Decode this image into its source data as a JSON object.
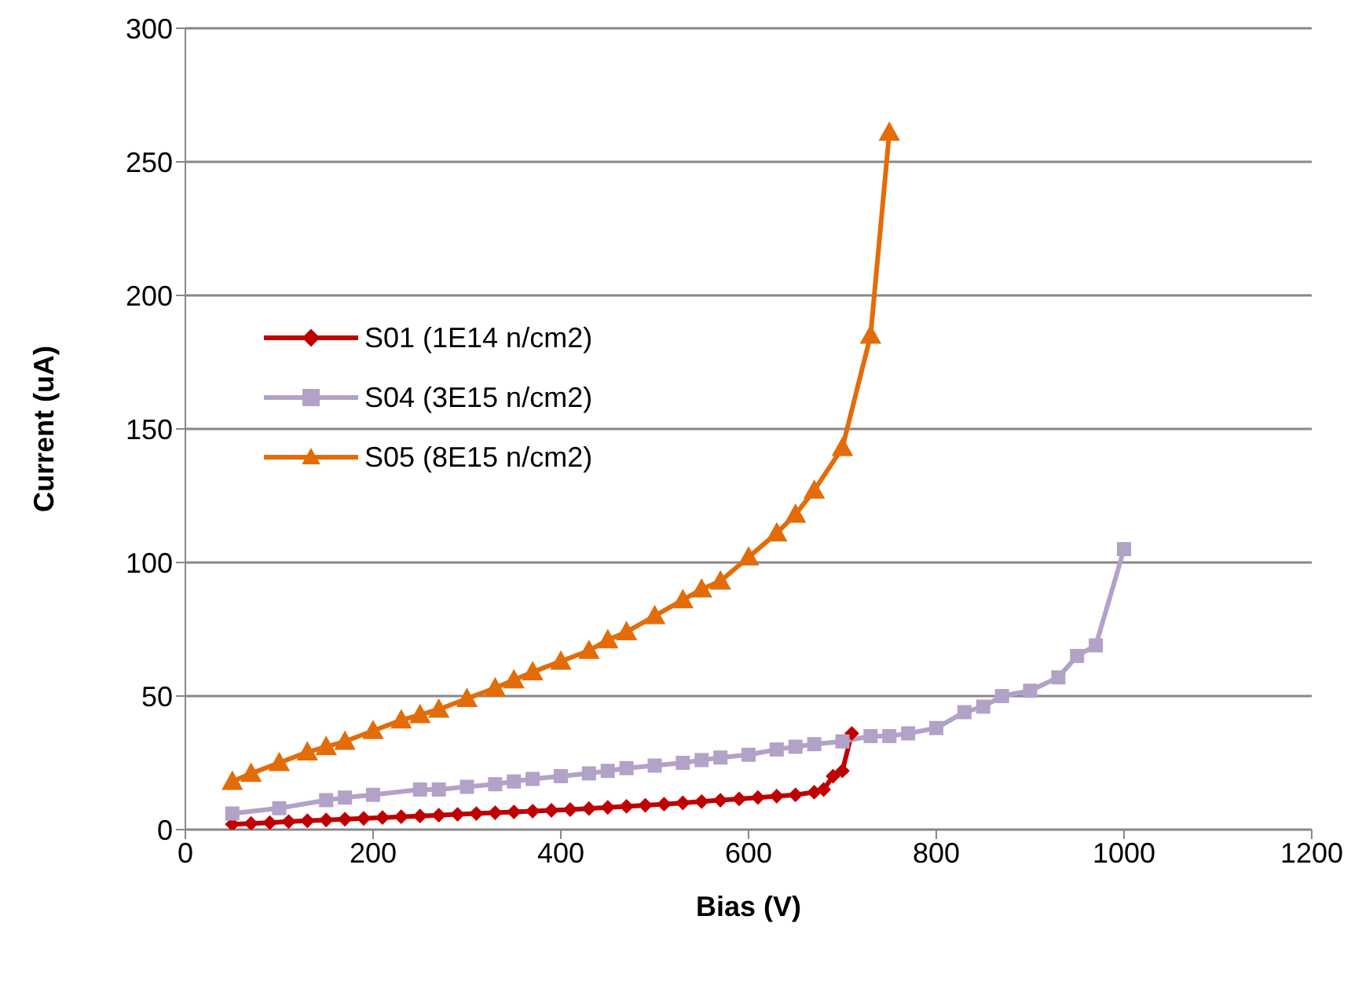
{
  "chart_data": {
    "type": "line",
    "xlabel": "Bias (V)",
    "ylabel": "Current (uA)",
    "xlim": [
      0,
      1200
    ],
    "xticks": [
      0,
      200,
      400,
      600,
      800,
      1000,
      1200
    ],
    "ylim": [
      0,
      300
    ],
    "yticks": [
      0,
      50,
      100,
      150,
      200,
      250,
      300
    ],
    "grid": "y",
    "legend": "left",
    "line_style": "solid",
    "series": [
      {
        "name": "S01 (1E14 n/cm2)",
        "color": "#c00000",
        "marker": "diamond",
        "x": [
          50,
          70,
          90,
          110,
          130,
          150,
          170,
          190,
          210,
          230,
          250,
          270,
          290,
          310,
          330,
          350,
          370,
          390,
          410,
          430,
          450,
          470,
          490,
          510,
          530,
          550,
          570,
          590,
          610,
          630,
          650,
          670,
          680,
          690,
          700,
          710
        ],
        "values": [
          2,
          2.3,
          2.6,
          3,
          3.3,
          3.6,
          3.9,
          4.2,
          4.5,
          4.8,
          5.1,
          5.4,
          5.7,
          6,
          6.3,
          6.6,
          6.9,
          7.2,
          7.5,
          7.9,
          8.3,
          8.7,
          9.1,
          9.5,
          10,
          10.5,
          11,
          11.5,
          12,
          12.5,
          13,
          14,
          15,
          20,
          22,
          36
        ]
      },
      {
        "name": "S04 (3E15 n/cm2)",
        "color": "#b3a2c7",
        "marker": "square",
        "x": [
          50,
          100,
          150,
          170,
          200,
          250,
          270,
          300,
          330,
          350,
          370,
          400,
          430,
          450,
          470,
          500,
          530,
          550,
          570,
          600,
          630,
          650,
          670,
          700,
          730,
          750,
          770,
          800,
          830,
          850,
          870,
          900,
          930,
          950,
          970,
          1000
        ],
        "values": [
          6,
          8,
          11,
          12,
          13,
          15,
          15,
          16,
          17,
          18,
          19,
          20,
          21,
          22,
          23,
          24,
          25,
          26,
          27,
          28,
          30,
          31,
          32,
          33,
          35,
          35,
          36,
          38,
          44,
          46,
          50,
          52,
          57,
          65,
          69,
          105
        ]
      },
      {
        "name": "S05 (8E15 n/cm2)",
        "color": "#e36c09",
        "marker": "triangle",
        "x": [
          50,
          70,
          100,
          130,
          150,
          170,
          200,
          230,
          250,
          270,
          300,
          330,
          350,
          370,
          400,
          430,
          450,
          470,
          500,
          530,
          550,
          570,
          600,
          630,
          650,
          670,
          700,
          730,
          750
        ],
        "values": [
          18,
          21,
          25,
          29,
          31,
          33,
          37,
          41,
          43,
          45,
          49,
          53,
          56,
          59,
          63,
          67,
          71,
          74,
          80,
          86,
          90,
          93,
          102,
          111,
          118,
          127,
          143,
          185,
          261
        ]
      }
    ]
  }
}
